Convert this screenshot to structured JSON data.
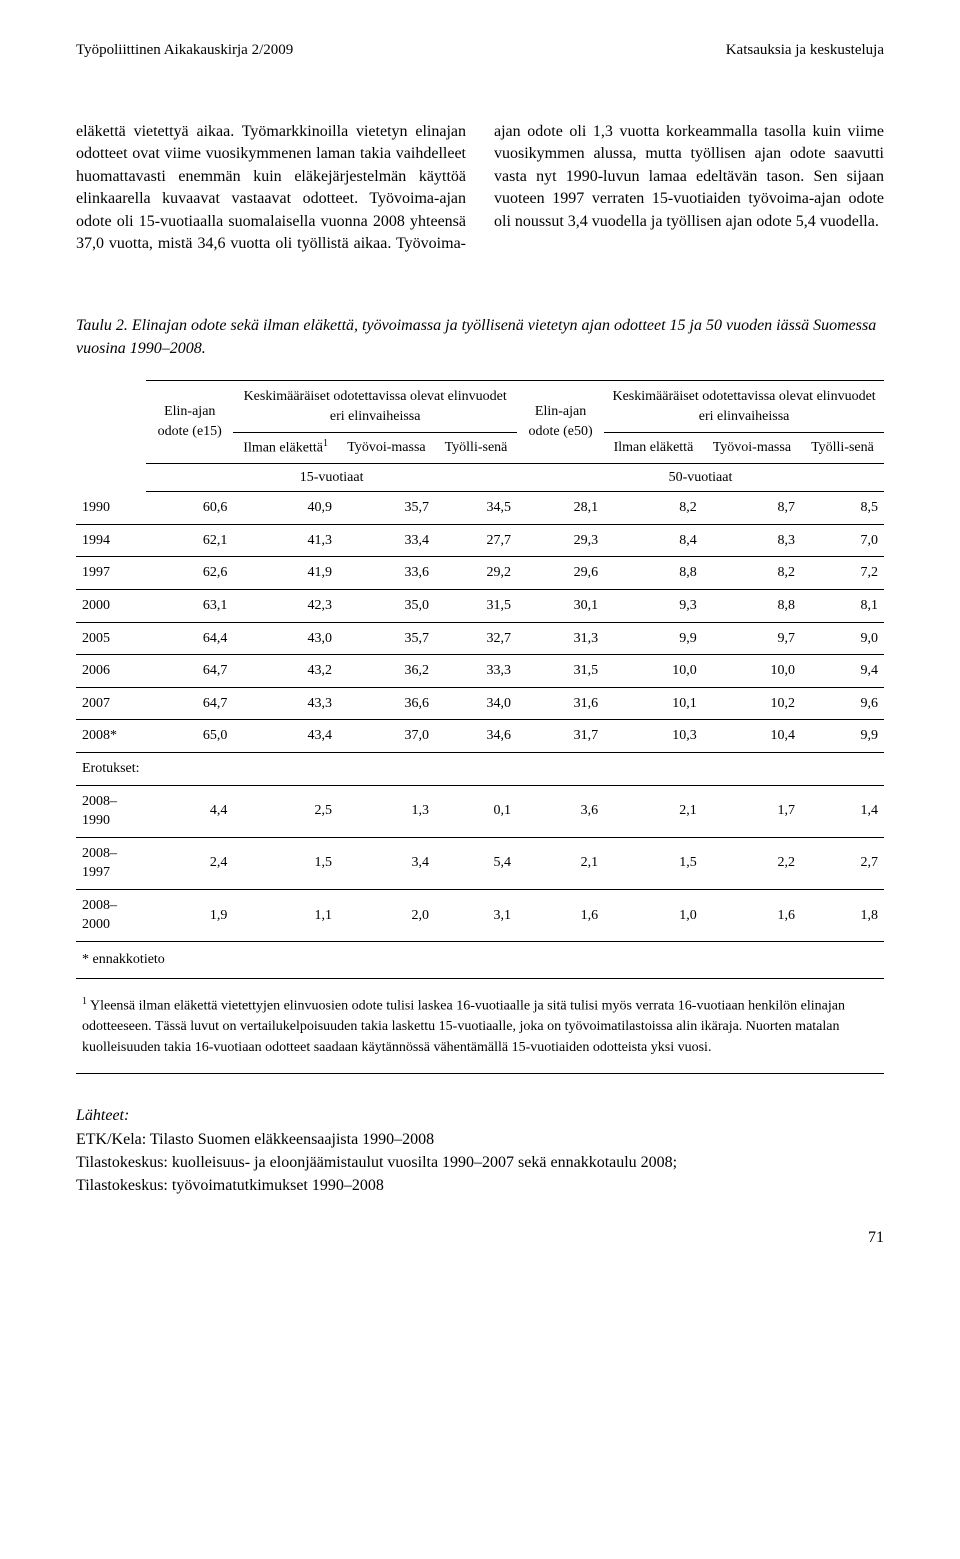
{
  "header": {
    "left": "Työpoliittinen Aikakauskirja 2/2009",
    "right": "Katsauksia ja keskusteluja"
  },
  "body_text": "eläkettä vietettyä aikaa. Työmarkkinoilla vietetyn elinajan odotteet ovat viime vuosikymmenen laman takia vaihdelleet huomattavasti enemmän kuin eläkejärjestelmän käyttöä elinkaarella kuvaavat vastaavat odotteet. Työvoima-ajan odote oli 15-vuotiaalla suomalaisella vuonna 2008 yhteensä 37,0 vuotta, mistä 34,6 vuotta oli työllistä aikaa. Työvoima-ajan odote oli 1,3 vuotta korkeammalla tasolla kuin viime vuosikymmen alussa, mutta työllisen ajan odote saavutti vasta nyt 1990-luvun lamaa edeltävän tason. Sen sijaan vuoteen 1997 verraten 15-vuotiaiden työvoima-ajan odote oli noussut 3,4 vuodella ja työllisen ajan odote 5,4 vuodella.",
  "table": {
    "caption": "Taulu 2. Elinajan odote sekä ilman eläkettä, työvoimassa ja työllisenä vietetyn ajan odotteet 15 ja 50 vuoden iässä Suomessa vuosina 1990–2008.",
    "headers": {
      "col1_top": "Elin-ajan odote (e15)",
      "group1": "Keskimääräiset odotettavissa olevat elinvuodet eri elinvaiheissa",
      "col5_top": "Elin-ajan odote (e50)",
      "group2": "Keskimääräiset odotettavissa olevat elinvuodet eri elinvaiheissa",
      "sub1": "Ilman eläkettä",
      "sub1_sup": "1",
      "sub2": "Työvoi-massa",
      "sub3": "Työlli-senä",
      "sub4": "Ilman eläkettä",
      "sub5": "Työvoi-massa",
      "sub6": "Työlli-senä",
      "age15": "15-vuotiaat",
      "age50": "50-vuotiaat"
    },
    "rows": [
      {
        "year": "1990",
        "c": [
          "60,6",
          "40,9",
          "35,7",
          "34,5",
          "28,1",
          "8,2",
          "8,7",
          "8,5"
        ]
      },
      {
        "year": "1994",
        "c": [
          "62,1",
          "41,3",
          "33,4",
          "27,7",
          "29,3",
          "8,4",
          "8,3",
          "7,0"
        ]
      },
      {
        "year": "1997",
        "c": [
          "62,6",
          "41,9",
          "33,6",
          "29,2",
          "29,6",
          "8,8",
          "8,2",
          "7,2"
        ]
      },
      {
        "year": "2000",
        "c": [
          "63,1",
          "42,3",
          "35,0",
          "31,5",
          "30,1",
          "9,3",
          "8,8",
          "8,1"
        ]
      },
      {
        "year": "2005",
        "c": [
          "64,4",
          "43,0",
          "35,7",
          "32,7",
          "31,3",
          "9,9",
          "9,7",
          "9,0"
        ]
      },
      {
        "year": "2006",
        "c": [
          "64,7",
          "43,2",
          "36,2",
          "33,3",
          "31,5",
          "10,0",
          "10,0",
          "9,4"
        ]
      },
      {
        "year": "2007",
        "c": [
          "64,7",
          "43,3",
          "36,6",
          "34,0",
          "31,6",
          "10,1",
          "10,2",
          "9,6"
        ]
      },
      {
        "year": "2008*",
        "c": [
          "65,0",
          "43,4",
          "37,0",
          "34,6",
          "31,7",
          "10,3",
          "10,4",
          "9,9"
        ]
      }
    ],
    "erotukset_label": "Erotukset:",
    "erotukset_rows": [
      {
        "year": "2008–1990",
        "c": [
          "4,4",
          "2,5",
          "1,3",
          "0,1",
          "3,6",
          "2,1",
          "1,7",
          "1,4"
        ]
      },
      {
        "year": "2008–1997",
        "c": [
          "2,4",
          "1,5",
          "3,4",
          "5,4",
          "2,1",
          "1,5",
          "2,2",
          "2,7"
        ]
      },
      {
        "year": "2008–2000",
        "c": [
          "1,9",
          "1,1",
          "2,0",
          "3,1",
          "1,6",
          "1,0",
          "1,6",
          "1,8"
        ]
      }
    ],
    "ennakkotieto": "* ennakkotieto",
    "footnote_sup": "1",
    "footnote": " Yleensä ilman eläkettä vietettyjen elinvuosien odote tulisi laskea 16-vuotiaalle ja sitä tulisi myös verrata 16-vuotiaan henkilön elinajan odotteeseen. Tässä luvut on vertailukelpoisuuden takia laskettu 15-vuotiaalle, joka on työvoimatilastoissa alin ikäraja. Nuorten matalan kuolleisuuden takia 16-vuotiaan odotteet saadaan käytännössä vähentämällä 15-vuotiaiden odotteista yksi vuosi."
  },
  "sources": {
    "title": "Lähteet:",
    "lines": [
      "ETK/Kela: Tilasto Suomen eläkkeensaajista 1990–2008",
      "Tilastokeskus: kuolleisuus- ja eloonjäämistaulut vuosilta 1990–2007 sekä ennakkotaulu 2008;",
      "Tilastokeskus: työvoimatutkimukset 1990–2008"
    ]
  },
  "page_number": "71"
}
